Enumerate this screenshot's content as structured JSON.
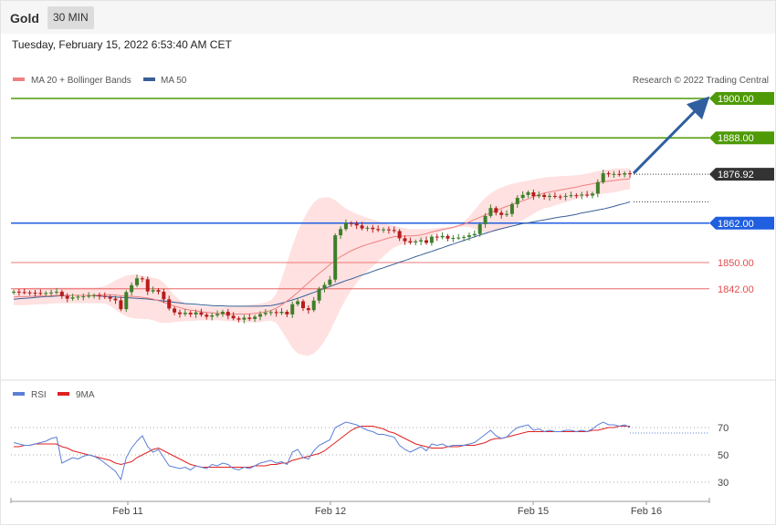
{
  "header": {
    "instrument": "Gold",
    "timeframe": "30 MIN"
  },
  "datetime": "Tuesday, February 15, 2022 6:53:40 AM CET",
  "credit": "Research © 2022 Trading Central",
  "colors": {
    "green_level": "#4e9a06",
    "blue_level": "#1f5fe0",
    "red_level": "#e44d4d",
    "current_price": "#333333",
    "ma20": "#f08080",
    "ma50": "#3a5f95",
    "bollinger": "#ffdede",
    "rsi": "#5b7fd6",
    "rsi_ma": "#e02020",
    "candle_up": "#3e7f2a",
    "candle_down": "#b71c1c",
    "arrow": "#2f5f9f"
  },
  "chart_data": [
    {
      "type": "candlestick",
      "panel": "price",
      "legend": [
        {
          "label": "MA 20 + Bollinger Bands",
          "color": "#f08080"
        },
        {
          "label": "MA 50",
          "color": "#3a5f95"
        }
      ],
      "current_price": "1876.92",
      "levels": [
        {
          "value": 1900.0,
          "label": "1900.00",
          "kind": "resistance",
          "color": "#4e9a06"
        },
        {
          "value": 1888.0,
          "label": "1888.00",
          "kind": "resistance",
          "color": "#4e9a06"
        },
        {
          "value": 1862.0,
          "label": "1862.00",
          "kind": "pivot",
          "color": "#1f5fe0"
        },
        {
          "value": 1850.0,
          "label": "1850.00",
          "kind": "support",
          "color": "#e44d4d"
        },
        {
          "value": 1842.0,
          "label": "1842.00",
          "kind": "support",
          "color": "#e44d4d"
        }
      ],
      "x_labels": [
        "Feb 11",
        "Feb 12",
        "Feb 15",
        "Feb 16"
      ],
      "closes": [
        1841.1,
        1841.0,
        1840.9,
        1840.8,
        1840.7,
        1840.6,
        1840.7,
        1840.9,
        1841.1,
        1839.8,
        1839.0,
        1839.4,
        1839.6,
        1839.7,
        1839.9,
        1840.0,
        1839.8,
        1839.5,
        1839.0,
        1838.5,
        1835.8,
        1841.0,
        1843.1,
        1845.2,
        1844.9,
        1841.2,
        1841.6,
        1841.1,
        1838.8,
        1836.0,
        1834.8,
        1834.3,
        1834.7,
        1834.2,
        1834.8,
        1834.1,
        1833.5,
        1833.9,
        1834.3,
        1835.0,
        1833.8,
        1833.0,
        1832.6,
        1833.2,
        1832.8,
        1833.5,
        1834.3,
        1834.7,
        1834.9,
        1834.6,
        1835.0,
        1834.2,
        1837.3,
        1838.2,
        1836.1,
        1835.5,
        1838.4,
        1842.0,
        1843.2,
        1844.8,
        1858.3,
        1860.2,
        1862.0,
        1861.8,
        1861.3,
        1860.4,
        1860.6,
        1860.2,
        1859.9,
        1860.1,
        1859.9,
        1859.6,
        1857.4,
        1856.5,
        1856.1,
        1856.4,
        1856.8,
        1856.0,
        1857.9,
        1857.7,
        1858.1,
        1857.3,
        1857.5,
        1857.6,
        1857.8,
        1858.3,
        1858.7,
        1861.7,
        1864.2,
        1866.6,
        1865.2,
        1864.5,
        1864.8,
        1867.8,
        1869.7,
        1870.6,
        1871.4,
        1870.2,
        1870.6,
        1870.0,
        1870.3,
        1870.1,
        1870.0,
        1870.3,
        1870.5,
        1870.4,
        1870.7,
        1870.4,
        1871.0,
        1874.5,
        1877.2,
        1876.9,
        1877.0,
        1876.8,
        1877.2,
        1876.9
      ],
      "ma20": [
        1839.5,
        1839.6,
        1839.6,
        1839.7,
        1839.8,
        1839.8,
        1839.8,
        1839.9,
        1840.0,
        1840.0,
        1840.0,
        1840.0,
        1840.0,
        1840.0,
        1840.0,
        1840.0,
        1840.1,
        1840.2,
        1840.2,
        1840.1,
        1839.9,
        1839.8,
        1839.7,
        1839.6,
        1839.4,
        1839.2,
        1838.9,
        1838.4,
        1837.9,
        1837.3,
        1836.7,
        1836.3,
        1835.8,
        1835.5,
        1835.3,
        1835.0,
        1834.8,
        1834.7,
        1834.5,
        1834.4,
        1834.3,
        1834.3,
        1834.3,
        1834.3,
        1834.4,
        1834.5,
        1834.7,
        1835.0,
        1835.4,
        1836.1,
        1837.1,
        1838.3,
        1839.5,
        1840.9,
        1842.4,
        1843.8,
        1845.3,
        1846.7,
        1848.0,
        1849.4,
        1850.7,
        1851.8,
        1852.7,
        1853.6,
        1854.3,
        1855.0,
        1855.5,
        1856.0,
        1856.5,
        1857.0,
        1857.5,
        1857.9,
        1858.0,
        1858.1,
        1858.1,
        1858.2,
        1858.4,
        1858.8,
        1859.3,
        1859.7,
        1860.1,
        1860.4,
        1860.7,
        1861.2,
        1861.7,
        1862.4,
        1863.1,
        1863.8,
        1864.5,
        1865.2,
        1865.8,
        1866.5,
        1867.1,
        1867.7,
        1868.3,
        1868.8,
        1869.4,
        1870.1,
        1870.7,
        1871.2,
        1871.5,
        1871.8,
        1872.1,
        1872.4,
        1872.7,
        1873.0,
        1873.4,
        1873.7,
        1874.0,
        1874.3,
        1874.6,
        1874.8,
        1875.0,
        1875.2,
        1875.4,
        1875.5
      ],
      "bb_upper": [
        1842.0,
        1842.2,
        1842.2,
        1842.3,
        1842.4,
        1842.3,
        1842.3,
        1842.3,
        1842.4,
        1842.4,
        1842.4,
        1842.4,
        1842.4,
        1842.4,
        1842.4,
        1842.4,
        1842.5,
        1842.8,
        1843.6,
        1844.6,
        1845.3,
        1846.0,
        1846.3,
        1846.3,
        1846.0,
        1845.6,
        1845.4,
        1845.0,
        1843.8,
        1842.0,
        1840.0,
        1838.6,
        1837.5,
        1837.0,
        1836.8,
        1836.7,
        1836.6,
        1836.6,
        1836.5,
        1836.5,
        1836.5,
        1836.5,
        1836.6,
        1836.8,
        1837.0,
        1837.3,
        1837.5,
        1837.8,
        1838.5,
        1840.5,
        1845.0,
        1850.0,
        1855.0,
        1859.5,
        1863.0,
        1866.0,
        1868.3,
        1869.6,
        1869.9,
        1869.8,
        1869.0,
        1867.7,
        1866.5,
        1865.6,
        1864.8,
        1864.2,
        1863.6,
        1863.1,
        1862.6,
        1862.1,
        1861.6,
        1861.2,
        1860.8,
        1860.5,
        1860.2,
        1860.2,
        1860.2,
        1860.2,
        1860.3,
        1860.5,
        1860.6,
        1860.8,
        1861.0,
        1861.6,
        1862.5,
        1864.0,
        1866.0,
        1868.0,
        1869.8,
        1871.1,
        1872.1,
        1872.9,
        1873.5,
        1874.0,
        1874.4,
        1874.7,
        1875.0,
        1875.3,
        1875.6,
        1875.9,
        1876.1,
        1876.2,
        1876.3,
        1876.4,
        1876.5,
        1876.6,
        1876.8,
        1877.1,
        1877.5,
        1877.9,
        1878.2,
        1878.4,
        1878.6,
        1878.7,
        1878.7,
        1878.7
      ],
      "bb_lower": [
        1837.0,
        1837.0,
        1837.0,
        1837.1,
        1837.2,
        1837.3,
        1837.3,
        1837.5,
        1837.6,
        1837.6,
        1837.6,
        1837.6,
        1837.6,
        1837.6,
        1837.6,
        1837.6,
        1837.6,
        1837.6,
        1836.8,
        1835.6,
        1834.5,
        1833.6,
        1833.1,
        1832.9,
        1832.8,
        1832.8,
        1832.4,
        1831.8,
        1831.6,
        1831.6,
        1831.9,
        1832.0,
        1832.1,
        1832.2,
        1832.3,
        1832.4,
        1832.4,
        1832.4,
        1832.4,
        1832.3,
        1832.1,
        1832.1,
        1832.0,
        1831.8,
        1831.8,
        1831.7,
        1831.8,
        1832.2,
        1832.3,
        1831.7,
        1829.2,
        1826.6,
        1824.0,
        1822.3,
        1821.8,
        1821.6,
        1822.3,
        1823.8,
        1826.1,
        1829.0,
        1832.4,
        1835.9,
        1838.9,
        1841.6,
        1843.8,
        1845.8,
        1847.4,
        1848.9,
        1850.4,
        1851.9,
        1853.4,
        1854.6,
        1855.2,
        1855.7,
        1856.0,
        1856.2,
        1856.6,
        1857.4,
        1858.3,
        1858.9,
        1859.6,
        1860.0,
        1860.4,
        1860.8,
        1860.9,
        1860.8,
        1860.2,
        1859.6,
        1859.2,
        1859.3,
        1859.5,
        1860.1,
        1860.7,
        1861.4,
        1862.2,
        1862.9,
        1863.8,
        1864.9,
        1865.8,
        1866.5,
        1866.9,
        1867.4,
        1867.9,
        1868.4,
        1868.9,
        1869.4,
        1870.0,
        1870.3,
        1870.5,
        1870.7,
        1871.0,
        1871.2,
        1871.4,
        1871.7,
        1872.1,
        1872.3
      ],
      "ma50": [
        1838.8,
        1839.0,
        1839.1,
        1839.2,
        1839.4,
        1839.5,
        1839.6,
        1839.7,
        1839.8,
        1839.9,
        1839.9,
        1840.0,
        1840.0,
        1840.0,
        1840.0,
        1839.9,
        1839.8,
        1839.7,
        1839.6,
        1839.5,
        1839.4,
        1839.3,
        1839.2,
        1839.1,
        1839.0,
        1838.9,
        1838.7,
        1838.5,
        1838.3,
        1838.1,
        1837.9,
        1837.7,
        1837.5,
        1837.4,
        1837.3,
        1837.1,
        1837.0,
        1836.9,
        1836.8,
        1836.8,
        1836.7,
        1836.7,
        1836.7,
        1836.7,
        1836.7,
        1836.7,
        1836.7,
        1836.8,
        1836.9,
        1837.2,
        1837.6,
        1838.1,
        1838.6,
        1839.1,
        1839.7,
        1840.3,
        1840.9,
        1841.5,
        1842.1,
        1842.7,
        1843.3,
        1843.9,
        1844.5,
        1845.0,
        1845.6,
        1846.2,
        1846.7,
        1847.3,
        1847.9,
        1848.4,
        1849.0,
        1849.5,
        1850.1,
        1850.6,
        1851.2,
        1851.8,
        1852.3,
        1852.9,
        1853.4,
        1854.0,
        1854.5,
        1855.1,
        1855.6,
        1856.2,
        1856.7,
        1857.3,
        1857.8,
        1858.4,
        1858.9,
        1859.4,
        1859.9,
        1860.3,
        1860.7,
        1861.1,
        1861.5,
        1861.9,
        1862.1,
        1862.4,
        1862.7,
        1863.0,
        1863.3,
        1863.6,
        1863.9,
        1864.1,
        1864.4,
        1864.7,
        1865.1,
        1865.4,
        1865.7,
        1866.0,
        1866.3,
        1866.7,
        1867.1,
        1867.6,
        1868.0,
        1868.5
      ]
    },
    {
      "type": "line",
      "panel": "rsi",
      "legend": [
        {
          "label": "RSI",
          "color": "#5b7fd6"
        },
        {
          "label": "9MA",
          "color": "#e02020"
        }
      ],
      "y_ticks": [
        30,
        50,
        70
      ],
      "rsi": [
        59,
        58,
        57,
        57,
        58,
        59,
        60,
        62,
        63,
        44,
        46,
        48,
        47,
        49,
        50,
        49,
        47,
        44,
        41,
        38,
        32,
        48,
        55,
        60,
        64,
        56,
        52,
        54,
        48,
        42,
        41,
        40,
        41,
        39,
        42,
        41,
        40,
        43,
        42,
        44,
        43,
        40,
        39,
        41,
        40,
        42,
        44,
        45,
        46,
        44,
        45,
        43,
        52,
        54,
        48,
        47,
        53,
        57,
        59,
        61,
        70,
        72,
        74,
        73,
        72,
        70,
        68,
        67,
        65,
        65,
        64,
        63,
        57,
        54,
        52,
        54,
        56,
        53,
        58,
        57,
        58,
        56,
        57,
        57,
        57,
        58,
        59,
        62,
        65,
        68,
        64,
        62,
        63,
        67,
        70,
        71,
        72,
        68,
        69,
        67,
        68,
        67,
        67,
        68,
        68,
        67,
        68,
        67,
        69,
        72,
        74,
        72,
        72,
        71,
        72,
        70
      ],
      "ma9": [
        56,
        56,
        57,
        57,
        58,
        58,
        58,
        58,
        58,
        56,
        55,
        53,
        52,
        51,
        50,
        49,
        48,
        47,
        46,
        44,
        43,
        44,
        45,
        48,
        50,
        52,
        54,
        55,
        53,
        51,
        49,
        47,
        45,
        43,
        42,
        41,
        41,
        41,
        41,
        41,
        41,
        41,
        41,
        41,
        41,
        42,
        42,
        42,
        43,
        43,
        44,
        44,
        46,
        47,
        48,
        49,
        50,
        51,
        53,
        56,
        59,
        62,
        65,
        68,
        70,
        71,
        71,
        71,
        70,
        69,
        67,
        66,
        64,
        62,
        60,
        58,
        57,
        56,
        55,
        55,
        55,
        56,
        56,
        56,
        57,
        57,
        57,
        58,
        59,
        61,
        62,
        62,
        63,
        64,
        65,
        66,
        67,
        67,
        67,
        67,
        67,
        67,
        67,
        67,
        67,
        67,
        67,
        67,
        68,
        68,
        69,
        70,
        70,
        71,
        71,
        71
      ]
    }
  ]
}
